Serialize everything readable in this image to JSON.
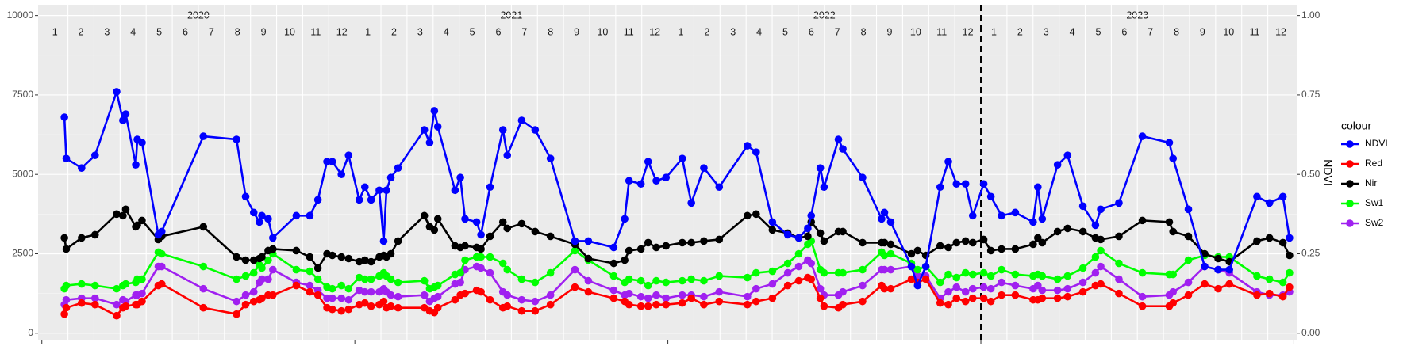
{
  "chart_data": {
    "type": "line",
    "legend_title": "colour",
    "legend": "right",
    "y2label": "NDVI",
    "grid": true,
    "facet_years": [
      "2020",
      "2021",
      "2022",
      "2023"
    ],
    "months": [
      "1",
      "2",
      "3",
      "4",
      "5",
      "6",
      "7",
      "8",
      "9",
      "10",
      "11",
      "12"
    ],
    "vline": {
      "x": 2023,
      "style": "dashed"
    },
    "xlim": [
      2019.988,
      2024.009
    ],
    "xticks": [
      2020,
      2021,
      2022,
      2023,
      2024
    ],
    "ylim": [
      -230,
      10340
    ],
    "yticks": [
      0,
      2500,
      5000,
      7500,
      10000
    ],
    "y2lim": [
      -0.023,
      1.034
    ],
    "y2ticks": [
      {
        "value": 0,
        "label": "0.00"
      },
      {
        "value": 0.25,
        "label": "0.25"
      },
      {
        "value": 0.5,
        "label": "0.50"
      },
      {
        "value": 0.75,
        "label": "0.75"
      },
      {
        "value": 1,
        "label": "1.00"
      }
    ],
    "x": [
      2020.072,
      2020.078,
      2020.127,
      2020.17,
      2020.239,
      2020.259,
      2020.268,
      2020.3,
      2020.305,
      2020.32,
      2020.372,
      2020.383,
      2020.516,
      2020.622,
      2020.651,
      2020.677,
      2020.695,
      2020.703,
      2020.723,
      2020.738,
      2020.813,
      2020.856,
      2020.882,
      2020.911,
      2020.928,
      2020.957,
      2020.98,
      2021.014,
      2021.032,
      2021.052,
      2021.078,
      2021.092,
      2021.101,
      2021.115,
      2021.138,
      2021.222,
      2021.239,
      2021.254,
      2021.265,
      2021.32,
      2021.337,
      2021.352,
      2021.389,
      2021.403,
      2021.432,
      2021.473,
      2021.487,
      2021.533,
      2021.576,
      2021.625,
      2021.703,
      2021.746,
      2021.827,
      2021.862,
      2021.876,
      2021.914,
      2021.937,
      2021.963,
      2021.994,
      2022.046,
      2022.075,
      2022.115,
      2022.164,
      2022.254,
      2022.282,
      2022.334,
      2022.383,
      2022.418,
      2022.447,
      2022.458,
      2022.487,
      2022.499,
      2022.545,
      2022.559,
      2022.622,
      2022.683,
      2022.692,
      2022.712,
      2022.778,
      2022.798,
      2022.824,
      2022.87,
      2022.896,
      2022.922,
      2022.951,
      2022.974,
      2023.009,
      2023.032,
      2023.066,
      2023.11,
      2023.167,
      2023.182,
      2023.196,
      2023.245,
      2023.277,
      2023.326,
      2023.366,
      2023.383,
      2023.441,
      2023.516,
      2023.602,
      2023.614,
      2023.663,
      2023.715,
      2023.758,
      2023.794,
      2023.882,
      2023.922,
      2023.965,
      2023.986
    ],
    "series": [
      {
        "name": "NDVI",
        "color": "#0000ff",
        "axis": "y2",
        "values": [
          0.68,
          0.55,
          0.52,
          0.56,
          0.76,
          0.67,
          0.69,
          0.53,
          0.61,
          0.6,
          0.31,
          0.32,
          0.62,
          0.61,
          0.43,
          0.38,
          0.35,
          0.37,
          0.36,
          0.3,
          0.37,
          0.37,
          0.42,
          0.54,
          0.54,
          0.5,
          0.56,
          0.42,
          0.46,
          0.42,
          0.45,
          0.29,
          0.45,
          0.49,
          0.52,
          0.64,
          0.6,
          0.7,
          0.65,
          0.45,
          0.49,
          0.36,
          0.35,
          0.31,
          0.46,
          0.64,
          0.56,
          0.67,
          0.64,
          0.55,
          0.29,
          0.29,
          0.27,
          0.36,
          0.48,
          0.47,
          0.54,
          0.48,
          0.49,
          0.55,
          0.41,
          0.52,
          0.46,
          0.59,
          0.57,
          0.35,
          0.31,
          0.3,
          0.33,
          0.37,
          0.52,
          0.46,
          0.61,
          0.58,
          0.49,
          0.36,
          0.38,
          0.35,
          0.21,
          0.15,
          0.21,
          0.46,
          0.54,
          0.47,
          0.47,
          0.37,
          0.47,
          0.43,
          0.37,
          0.38,
          0.35,
          0.46,
          0.36,
          0.53,
          0.56,
          0.4,
          0.34,
          0.39,
          0.41,
          0.62,
          0.6,
          0.55,
          0.39,
          0.21,
          0.2,
          0.2,
          0.43,
          0.41,
          0.43,
          0.3
        ]
      },
      {
        "name": "Red",
        "color": "#ff0000",
        "values": [
          600,
          800,
          950,
          900,
          550,
          800,
          850,
          900,
          900,
          1000,
          1500,
          1550,
          800,
          600,
          900,
          1000,
          1050,
          1100,
          1200,
          1200,
          1500,
          1300,
          1200,
          800,
          750,
          700,
          750,
          900,
          950,
          850,
          900,
          1000,
          800,
          850,
          800,
          800,
          700,
          650,
          800,
          1050,
          1200,
          1250,
          1350,
          1300,
          1050,
          800,
          850,
          700,
          700,
          900,
          1450,
          1300,
          1100,
          1000,
          900,
          850,
          850,
          900,
          900,
          950,
          1100,
          900,
          1000,
          900,
          1000,
          1100,
          1500,
          1650,
          1750,
          1700,
          1100,
          850,
          800,
          900,
          1000,
          1500,
          1400,
          1400,
          1700,
          1600,
          1700,
          950,
          900,
          1100,
          1000,
          1100,
          1100,
          1000,
          1200,
          1200,
          1050,
          1050,
          1100,
          1100,
          1150,
          1300,
          1500,
          1550,
          1250,
          850,
          850,
          950,
          1200,
          1550,
          1400,
          1550,
          1200,
          1250,
          1150,
          1450
        ]
      },
      {
        "name": "Nir",
        "color": "#000000",
        "values": [
          3000,
          2650,
          3000,
          3100,
          3750,
          3700,
          3900,
          3350,
          3400,
          3550,
          2950,
          3050,
          3350,
          2400,
          2300,
          2300,
          2350,
          2400,
          2600,
          2650,
          2600,
          2400,
          2050,
          2500,
          2450,
          2400,
          2350,
          2250,
          2300,
          2250,
          2400,
          2450,
          2400,
          2500,
          2900,
          3700,
          3350,
          3250,
          3600,
          2750,
          2700,
          2750,
          2700,
          2650,
          3050,
          3500,
          3300,
          3450,
          3200,
          3050,
          2800,
          2350,
          2200,
          2300,
          2600,
          2650,
          2850,
          2700,
          2750,
          2850,
          2850,
          2900,
          2950,
          3700,
          3750,
          3250,
          3150,
          3000,
          3050,
          3500,
          3150,
          2900,
          3200,
          3200,
          2850,
          2850,
          2850,
          2800,
          2500,
          2600,
          2450,
          2750,
          2700,
          2850,
          2900,
          2850,
          2950,
          2600,
          2650,
          2650,
          2800,
          3000,
          2850,
          3200,
          3300,
          3200,
          3000,
          2950,
          3050,
          3550,
          3500,
          3200,
          3050,
          2500,
          2350,
          2250,
          2900,
          3000,
          2850,
          2450
        ]
      },
      {
        "name": "Sw1",
        "color": "#00ff00",
        "values": [
          1400,
          1500,
          1550,
          1500,
          1400,
          1500,
          1550,
          1600,
          1700,
          1700,
          2550,
          2500,
          2100,
          1700,
          1800,
          1900,
          2150,
          2050,
          2300,
          2500,
          2000,
          1950,
          1700,
          1450,
          1400,
          1500,
          1400,
          1750,
          1700,
          1700,
          1800,
          1900,
          1800,
          1700,
          1600,
          1650,
          1400,
          1450,
          1500,
          1850,
          1900,
          2300,
          2400,
          2400,
          2400,
          2200,
          2000,
          1700,
          1600,
          1900,
          2600,
          2300,
          1800,
          1600,
          1700,
          1650,
          1500,
          1650,
          1600,
          1650,
          1700,
          1650,
          1800,
          1750,
          1900,
          1950,
          2200,
          2500,
          2800,
          2900,
          2000,
          1900,
          1900,
          1900,
          2000,
          2550,
          2450,
          2500,
          2200,
          2000,
          2100,
          1600,
          1850,
          1750,
          1900,
          1850,
          1900,
          1800,
          2000,
          1850,
          1800,
          1850,
          1800,
          1700,
          1800,
          2050,
          2400,
          2600,
          2200,
          1900,
          1850,
          1850,
          2300,
          2450,
          2400,
          2400,
          1800,
          1700,
          1600,
          1900
        ]
      },
      {
        "name": "Sw2",
        "color": "#a020f0",
        "values": [
          900,
          1050,
          1100,
          1100,
          900,
          1050,
          1000,
          1200,
          1200,
          1250,
          2100,
          2100,
          1400,
          1000,
          1200,
          1300,
          1600,
          1700,
          1700,
          2000,
          1600,
          1500,
          1350,
          1100,
          1100,
          1100,
          1050,
          1350,
          1300,
          1300,
          1300,
          1400,
          1300,
          1200,
          1150,
          1200,
          1000,
          1100,
          1150,
          1550,
          1600,
          2000,
          2100,
          2050,
          1900,
          1300,
          1200,
          1050,
          1000,
          1200,
          2000,
          1650,
          1350,
          1200,
          1250,
          1150,
          1100,
          1200,
          1100,
          1200,
          1200,
          1150,
          1300,
          1150,
          1400,
          1550,
          1900,
          2100,
          2300,
          2200,
          1400,
          1200,
          1200,
          1300,
          1500,
          2000,
          2000,
          2000,
          2100,
          1800,
          1800,
          1100,
          1300,
          1450,
          1300,
          1400,
          1450,
          1400,
          1600,
          1500,
          1400,
          1500,
          1350,
          1350,
          1400,
          1600,
          1900,
          2100,
          1700,
          1150,
          1200,
          1300,
          1600,
          2100,
          2000,
          1900,
          1300,
          1200,
          1200,
          1300
        ]
      }
    ]
  }
}
